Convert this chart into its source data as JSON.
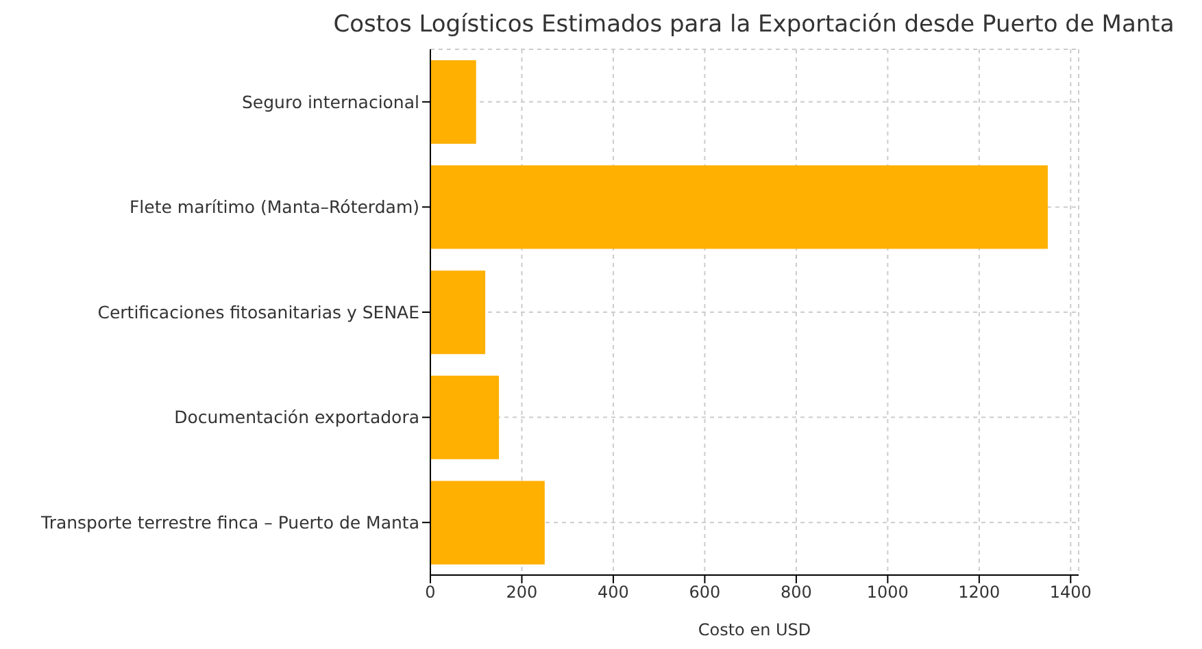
{
  "chart_data": {
    "type": "bar",
    "orientation": "horizontal",
    "title": "Costos Logísticos Estimados para la Exportación desde Puerto de Manta",
    "xlabel": "Costo en USD",
    "categories": [
      "Seguro internacional",
      "Flete marítimo (Manta–Róterdam)",
      "Certificaciones fitosanitarias y SENAE",
      "Documentación exportadora",
      "Transporte terrestre finca – Puerto de Manta"
    ],
    "values": [
      100,
      1350,
      120,
      150,
      250
    ],
    "color": "#ffb000",
    "xlim": [
      0,
      1417.5
    ],
    "xticks": [
      0,
      200,
      400,
      600,
      800,
      1000,
      1200,
      1400
    ],
    "grid": true
  }
}
